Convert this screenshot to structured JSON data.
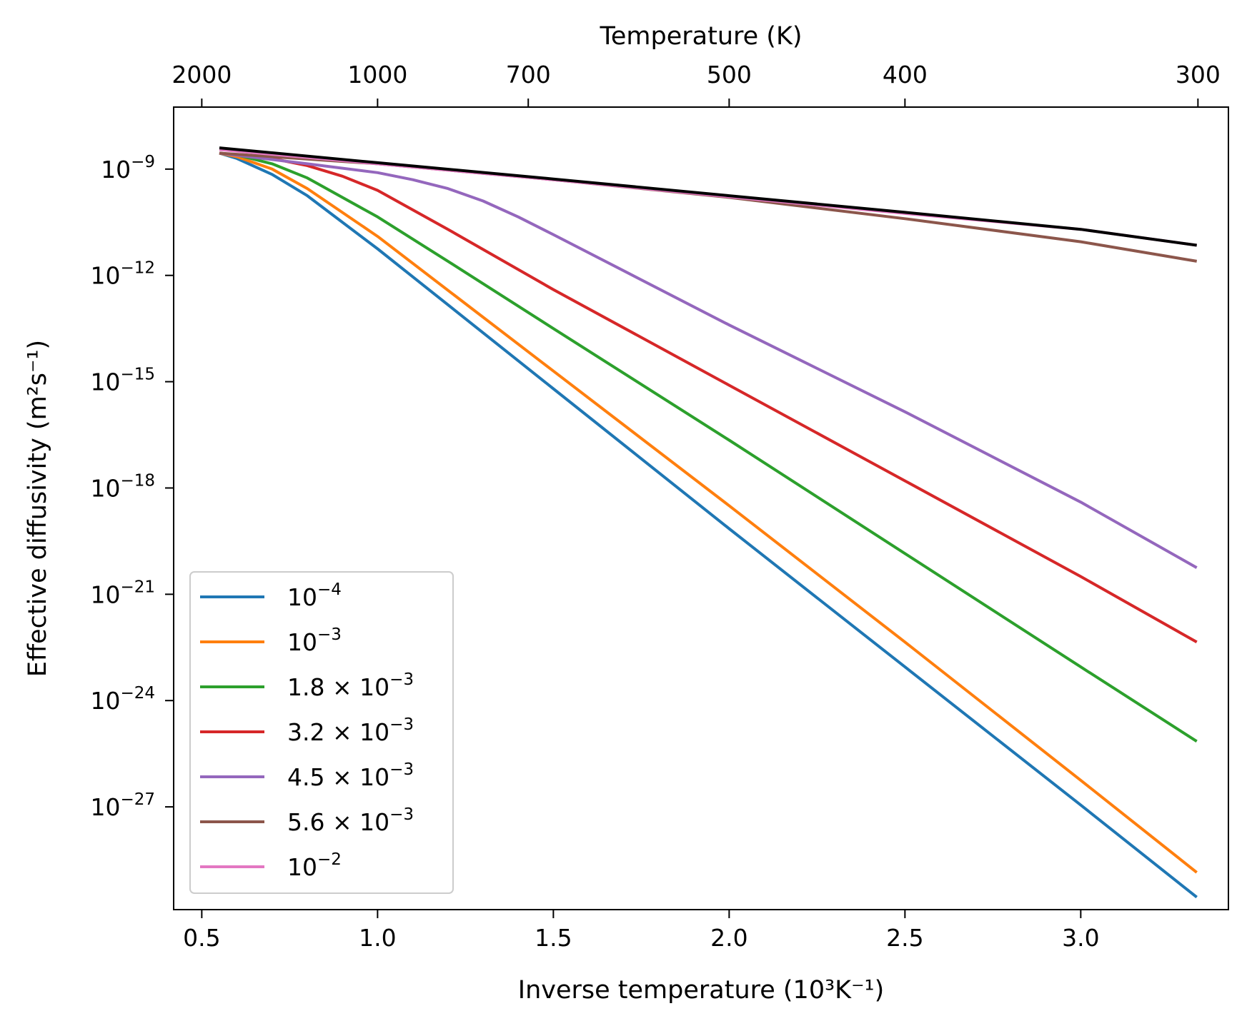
{
  "chart_data": {
    "type": "line",
    "title": "",
    "xlabel": "Inverse temperature (10³K⁻¹)",
    "ylabel": "Effective diffusivity (m²s⁻¹)",
    "top_xlabel": "Temperature (K)",
    "xlim": [
      0.42,
      3.42
    ],
    "ylog_lim": [
      -29.9,
      -7.25
    ],
    "grid": false,
    "legend_position": "lower-left",
    "x_ticks": [
      {
        "value": 0.5,
        "label": "0.5"
      },
      {
        "value": 1.0,
        "label": "1.0"
      },
      {
        "value": 1.5,
        "label": "1.5"
      },
      {
        "value": 2.0,
        "label": "2.0"
      },
      {
        "value": 2.5,
        "label": "2.5"
      },
      {
        "value": 3.0,
        "label": "3.0"
      }
    ],
    "top_x_ticks": [
      {
        "temperature": 2000,
        "label": "2000"
      },
      {
        "temperature": 1000,
        "label": "1000"
      },
      {
        "temperature": 700,
        "label": "700"
      },
      {
        "temperature": 500,
        "label": "500"
      },
      {
        "temperature": 400,
        "label": "400"
      },
      {
        "temperature": 300,
        "label": "300"
      }
    ],
    "y_ticks": [
      {
        "exponent": -9,
        "base": "10",
        "exp": "−9"
      },
      {
        "exponent": -12,
        "base": "10",
        "exp": "−12"
      },
      {
        "exponent": -15,
        "base": "10",
        "exp": "−15"
      },
      {
        "exponent": -18,
        "base": "10",
        "exp": "−18"
      },
      {
        "exponent": -21,
        "base": "10",
        "exp": "−21"
      },
      {
        "exponent": -24,
        "base": "10",
        "exp": "−24"
      },
      {
        "exponent": -27,
        "base": "10",
        "exp": "−27"
      }
    ],
    "series": [
      {
        "name": "10⁻⁴",
        "legend_main": "10",
        "legend_exp": "−4",
        "color": "#1f77b4",
        "x": [
          0.55,
          0.6,
          0.7,
          0.8,
          1.0,
          1.5,
          2.0,
          2.5,
          3.0,
          3.33
        ],
        "log10_y": [
          -8.55,
          -8.7,
          -9.15,
          -9.75,
          -11.25,
          -15.2,
          -19.15,
          -23.05,
          -26.95,
          -29.55
        ]
      },
      {
        "name": "10⁻³",
        "legend_main": "10",
        "legend_exp": "−3",
        "color": "#ff7f0e",
        "x": [
          0.55,
          0.6,
          0.7,
          0.8,
          1.0,
          1.5,
          2.0,
          2.5,
          3.0,
          3.33
        ],
        "log10_y": [
          -8.55,
          -8.65,
          -9.0,
          -9.55,
          -10.9,
          -14.7,
          -18.5,
          -22.35,
          -26.25,
          -28.85
        ]
      },
      {
        "name": "1.8 × 10⁻³",
        "legend_main": "1.8 × 10",
        "legend_exp": "−3",
        "color": "#2ca02c",
        "x": [
          0.55,
          0.6,
          0.7,
          0.8,
          1.0,
          1.2,
          1.5,
          2.0,
          2.5,
          3.0,
          3.33
        ],
        "log10_y": [
          -8.55,
          -8.6,
          -8.85,
          -9.25,
          -10.35,
          -11.6,
          -13.5,
          -16.65,
          -19.85,
          -23.05,
          -25.15
        ]
      },
      {
        "name": "3.2 × 10⁻³",
        "legend_main": "3.2 × 10",
        "legend_exp": "−3",
        "color": "#d62728",
        "x": [
          0.55,
          0.7,
          0.8,
          0.9,
          1.0,
          1.2,
          1.5,
          2.0,
          2.5,
          3.0,
          3.33
        ],
        "log10_y": [
          -8.55,
          -8.7,
          -8.9,
          -9.2,
          -9.6,
          -10.7,
          -12.4,
          -15.1,
          -17.8,
          -20.5,
          -22.35
        ]
      },
      {
        "name": "4.5 × 10⁻³",
        "legend_main": "4.5 × 10",
        "legend_exp": "−3",
        "color": "#9467bd",
        "x": [
          0.55,
          0.8,
          1.0,
          1.1,
          1.2,
          1.3,
          1.4,
          1.5,
          2.0,
          2.5,
          3.0,
          3.33
        ],
        "log10_y": [
          -8.55,
          -8.85,
          -9.1,
          -9.3,
          -9.55,
          -9.9,
          -10.35,
          -10.85,
          -13.4,
          -15.85,
          -18.4,
          -20.25
        ]
      },
      {
        "name": "5.6 × 10⁻³",
        "legend_main": "5.6 × 10",
        "legend_exp": "−3",
        "color": "#8c564b",
        "x": [
          0.55,
          1.0,
          1.5,
          2.0,
          2.5,
          3.0,
          3.33
        ],
        "log10_y": [
          -8.55,
          -8.85,
          -9.3,
          -9.8,
          -10.4,
          -11.05,
          -11.6
        ]
      },
      {
        "name": "10⁻²",
        "legend_main": "10",
        "legend_exp": "−2",
        "color": "#e377c2",
        "x": [
          0.55,
          1.0,
          1.5,
          2.0,
          2.5,
          3.0,
          3.33
        ],
        "log10_y": [
          -8.45,
          -8.85,
          -9.3,
          -9.78,
          -10.25,
          -10.7,
          -11.15
        ]
      },
      {
        "name": "",
        "legend_main": "",
        "legend_exp": "",
        "color": "#000000",
        "x": [
          0.55,
          1.0,
          1.5,
          2.0,
          2.5,
          3.0,
          3.33
        ],
        "log10_y": [
          -8.4,
          -8.82,
          -9.28,
          -9.75,
          -10.22,
          -10.7,
          -11.15
        ]
      }
    ]
  }
}
